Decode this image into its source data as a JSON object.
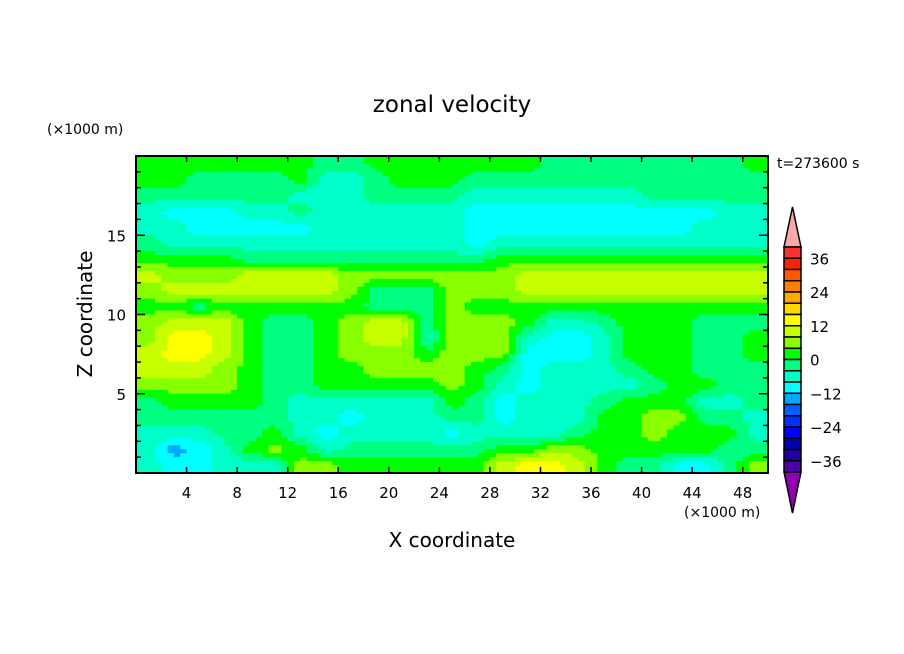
{
  "chart_data": {
    "type": "heatmap",
    "title": "zonal velocity",
    "xlabel": "X coordinate",
    "ylabel": "Z coordinate",
    "x_unit_label": "(×1000 m)",
    "y_unit_label": "(×1000 m)",
    "time_label": "t=273600 s",
    "xlim": [
      0,
      50
    ],
    "ylim": [
      0,
      20
    ],
    "x_ticks": [
      4,
      8,
      12,
      16,
      20,
      24,
      28,
      32,
      36,
      40,
      44,
      48
    ],
    "y_ticks": [
      5,
      10,
      15
    ],
    "colorbar": {
      "levels_min": -40,
      "levels_max": 40,
      "step": 4,
      "tick_labels": [
        "36",
        "24",
        "12",
        "0",
        "-12",
        "-24",
        "-36"
      ],
      "tick_values": [
        36,
        24,
        12,
        0,
        -12,
        -24,
        -36
      ],
      "colors_top_to_bottom": [
        "#ff3030",
        "#ff2000",
        "#ff5a00",
        "#ff8000",
        "#ffa800",
        "#ffd800",
        "#ffff00",
        "#c8ff00",
        "#88ff00",
        "#00ff00",
        "#00ff80",
        "#00ffc8",
        "#00ffff",
        "#00a8ff",
        "#0060ff",
        "#0030ff",
        "#0000ff",
        "#0000b0",
        "#2000a0",
        "#5000a8"
      ],
      "over_color": "#f8a8a8",
      "under_color": "#9000b0"
    },
    "grid_cell_km": {
      "dx": 2,
      "dz": 1
    },
    "grid_code_values": {
      "U": 14,
      "Y": 10,
      "L": 6,
      "G": 2,
      "S": -2,
      "A": -6,
      "C": -10,
      "B": -14
    },
    "grid_rows_top_to_bottom": [
      "GGGGGGGSSGGGGGGGSSSSSSSSG",
      "GGSSSSGAASGGGSSSSSSSSSSSS",
      "SSSSSSAAASSSSAAAAAAASSSSS",
      "ACCCAASAAAAAACCCCCCCCCCAA",
      "AACCCCCAAAAAACCCCCCCCCAAA",
      "SAAAAAAAAAAAACAAAAAAAAAAA",
      "GGGGSSSSSSSSSSGGGGGGGGGGG",
      "YLLLYYYYLLLLLLLYYYYYYYYYY",
      "LYYYYYYYLSSSLLLYYYYYYYYYY",
      "GGSGGGGGGSSSLGGGGGGGGGGGG",
      "LYYYGSSGLYYSLLLGAASGGGSSS",
      "LUUYGSSGLYYALLLACCAGGGSSG",
      "YUUYGSSGLLLGLLLCCCAGGGSSG",
      "YYYLGSSGGLLLLGSCAAASGGSSS",
      "LLLLGSSGGGGGLGACAAAASGGSS",
      "SGGGGSAAAAAAGSCAAASGGGAAS",
      "SSSSSSAACAAASSCAAAGGLLSSA",
      "AAASSGACAAAACAAAASGGLGGGA",
      "ABCAGLGASSSSSSGGLLGGGGGSS",
      "ACCAAALLGGGGGGYUUYGSSCCSL"
    ]
  }
}
